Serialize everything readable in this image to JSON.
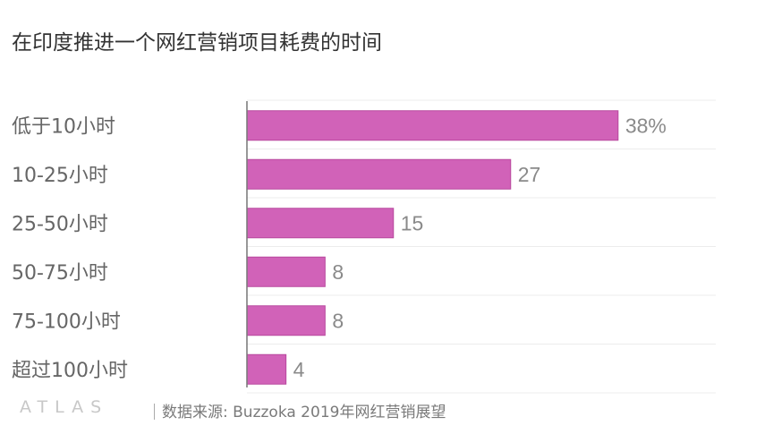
{
  "chart_data": {
    "type": "bar",
    "orientation": "horizontal",
    "title": "在印度推进一个网红营销项目耗费的时间",
    "categories": [
      "低于10小时",
      "10-25小时",
      "25-50小时",
      "50-75小时",
      "75-100小时",
      "超过100小时"
    ],
    "values": [
      38,
      27,
      15,
      8,
      8,
      4
    ],
    "value_labels": [
      "38%",
      "27",
      "15",
      "8",
      "8",
      "4"
    ],
    "unit": "%",
    "xlim": [
      0,
      48
    ],
    "xlabel": "",
    "ylabel": "",
    "grid": true,
    "legend": "none",
    "bar_color": "#d162b8"
  },
  "footer": {
    "brand": "ATLAS",
    "source": "数据来源: Buzzoka 2019年网红营销展望"
  }
}
